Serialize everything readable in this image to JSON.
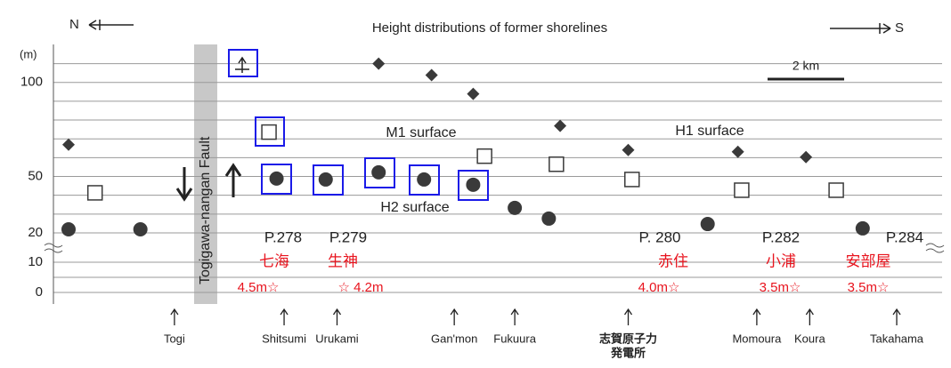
{
  "chart_data": {
    "type": "scatter",
    "title": "Height distributions of former shorelines",
    "north": "N",
    "south": "S",
    "y_unit": "(m)",
    "fault_label": "Togigawa-nangan Fault",
    "scale_label": "2 km",
    "xlim": [
      0,
      23.5
    ],
    "ylim": [
      0,
      115
    ],
    "axis_break": [
      10,
      20
    ],
    "yticks": [
      0,
      10,
      20,
      50,
      100
    ],
    "minor_yticks": [
      5,
      30,
      40,
      60,
      70,
      80,
      90,
      110
    ],
    "series": [
      {
        "name": "M1 surface",
        "marker": "circle",
        "color": "#3a3a3a",
        "x": [
          0.4,
          2.3,
          5.9,
          7.2,
          8.6,
          9.8,
          11.1,
          12.2,
          13.1,
          17.3,
          21.4
        ],
        "values": [
          21.9,
          21.9,
          48.9,
          48.4,
          52.2,
          48.4,
          45.6,
          33.3,
          27.6,
          24.7,
          22.4
        ]
      },
      {
        "name": "H2 surface",
        "marker": "square",
        "color": "#3a3a3a",
        "x": [
          1.1,
          5.7,
          11.4,
          13.3,
          15.3,
          18.2,
          20.7
        ],
        "values": [
          41.3,
          73.6,
          60.8,
          56.5,
          48.4,
          42.7,
          42.7
        ]
      },
      {
        "name": "H1 surface",
        "marker": "diamond",
        "color": "#3a3a3a",
        "x": [
          0.4,
          8.6,
          10.0,
          11.1,
          13.4,
          15.2,
          18.1,
          19.9
        ],
        "values": [
          66.9,
          110,
          103.9,
          93.9,
          76.9,
          64.1,
          63.1,
          60.3
        ]
      }
    ],
    "locations": [
      {
        "name": "Togi",
        "x": 3.2
      },
      {
        "name": "Shitsumi",
        "x": 6.1
      },
      {
        "name": "Urukami",
        "x": 7.5
      },
      {
        "name": "Gan'mon",
        "x": 10.6
      },
      {
        "name": "Fukuura",
        "x": 12.2
      },
      {
        "name": [
          "志賀原子力",
          "発電所"
        ],
        "x": 15.2
      },
      {
        "name": "Momoura",
        "x": 18.6
      },
      {
        "name": "Koura",
        "x": 20.0
      },
      {
        "name": "Takahama",
        "x": 22.3
      }
    ],
    "annotations": [
      {
        "page": "P.278",
        "place": "七海",
        "height": "4.5m☆"
      },
      {
        "page": "P.279",
        "place": "生神",
        "height": "☆ 4.2m"
      },
      {
        "page": "P. 280",
        "place": "赤住",
        "height": "4.0m☆"
      },
      {
        "page": "P.282",
        "place": "小浦",
        "height": "3.5m☆"
      },
      {
        "page": "P.284",
        "place": "安部屋",
        "height": "3.5m☆"
      }
    ]
  }
}
